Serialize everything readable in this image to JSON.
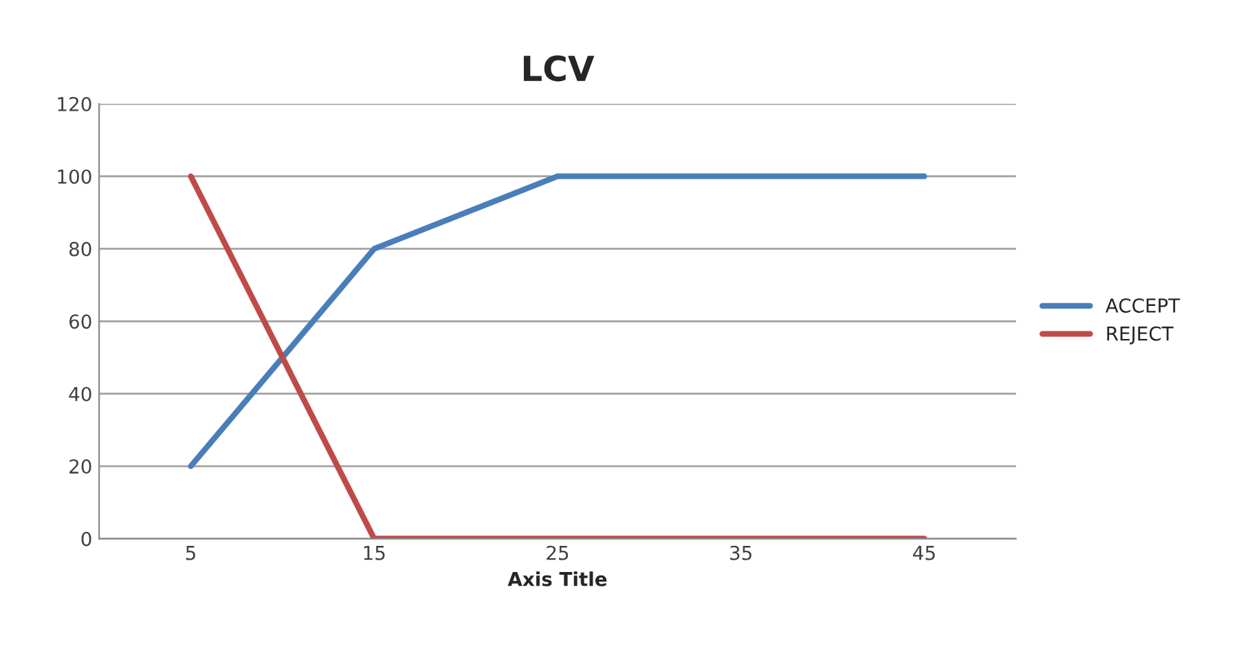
{
  "chart_data": {
    "type": "line",
    "title": "LCV",
    "xlabel": "Axis Title",
    "categories": [
      "5",
      "15",
      "25",
      "35",
      "45"
    ],
    "series": [
      {
        "name": "ACCEPT",
        "color": "#4a7ebb",
        "values": [
          20,
          80,
          100,
          100,
          100
        ]
      },
      {
        "name": "REJECT",
        "color": "#be4b48",
        "values": [
          100,
          0,
          0,
          0,
          0
        ]
      }
    ],
    "ylim": [
      0,
      120
    ],
    "yticks": [
      0,
      20,
      40,
      60,
      80,
      100,
      120
    ],
    "grid": "y",
    "legend": "right",
    "marker": "none",
    "line_style": "solid"
  }
}
